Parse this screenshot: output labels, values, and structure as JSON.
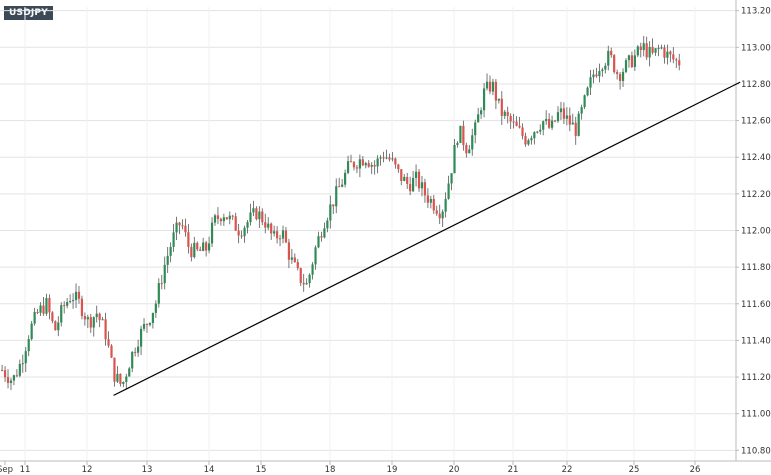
{
  "symbol": "USDJPY",
  "colors": {
    "up": "#2e8b57",
    "down": "#d9534f",
    "wick": "#555555",
    "grid": "#e3e3e3",
    "trendline": "#000000",
    "badge_bg": "#3c4a57",
    "axis": "#bbbbbb"
  },
  "chart_data": {
    "type": "candlestick",
    "title": "USDJPY",
    "y_ticks": [
      "113.200",
      "113.000",
      "112.800",
      "112.600",
      "112.400",
      "112.200",
      "112.000",
      "111.800",
      "111.600",
      "111.400",
      "111.200",
      "111.000",
      "110.800"
    ],
    "x_ticks": [
      "Sep",
      "11",
      "12",
      "13",
      "14",
      "15",
      "18",
      "19",
      "20",
      "21",
      "22",
      "25",
      "26"
    ],
    "ylim": [
      110.78,
      113.22
    ],
    "grid": true,
    "legend": "none",
    "trendline": {
      "start": [
        12.7,
        111.1
      ],
      "end": [
        27.6,
        112.81
      ]
    },
    "close_path": [
      [
        10.0,
        111.25
      ],
      [
        10.3,
        111.18
      ],
      [
        10.5,
        111.28
      ],
      [
        10.7,
        111.45
      ],
      [
        10.9,
        111.55
      ],
      [
        11.1,
        111.6
      ],
      [
        11.3,
        111.45
      ],
      [
        11.5,
        111.58
      ],
      [
        11.7,
        111.65
      ],
      [
        11.9,
        111.6
      ],
      [
        12.1,
        111.5
      ],
      [
        12.3,
        111.55
      ],
      [
        12.5,
        111.45
      ],
      [
        12.7,
        111.22
      ],
      [
        12.9,
        111.15
      ],
      [
        13.1,
        111.3
      ],
      [
        13.3,
        111.42
      ],
      [
        13.5,
        111.5
      ],
      [
        13.7,
        111.6
      ],
      [
        13.9,
        111.8
      ],
      [
        14.1,
        111.95
      ],
      [
        14.3,
        112.05
      ],
      [
        14.5,
        111.9
      ],
      [
        14.7,
        111.88
      ],
      [
        14.9,
        111.9
      ],
      [
        15.1,
        112.05
      ],
      [
        15.3,
        112.1
      ],
      [
        15.5,
        112.05
      ],
      [
        15.7,
        112.0
      ],
      [
        15.9,
        112.05
      ],
      [
        16.1,
        112.1
      ],
      [
        16.3,
        112.05
      ],
      [
        16.5,
        111.95
      ],
      [
        16.7,
        112.0
      ],
      [
        16.9,
        111.85
      ],
      [
        17.1,
        111.75
      ],
      [
        17.3,
        111.7
      ],
      [
        17.5,
        111.9
      ],
      [
        17.7,
        112.05
      ],
      [
        17.9,
        112.15
      ],
      [
        18.1,
        112.25
      ],
      [
        18.3,
        112.35
      ],
      [
        18.5,
        112.38
      ],
      [
        18.7,
        112.4
      ],
      [
        18.9,
        112.35
      ],
      [
        19.1,
        112.42
      ],
      [
        19.3,
        112.38
      ],
      [
        19.5,
        112.3
      ],
      [
        19.7,
        112.25
      ],
      [
        19.9,
        112.28
      ],
      [
        20.1,
        112.2
      ],
      [
        20.3,
        112.15
      ],
      [
        20.5,
        112.1
      ],
      [
        20.7,
        112.3
      ],
      [
        20.9,
        112.55
      ],
      [
        21.1,
        112.45
      ],
      [
        21.3,
        112.55
      ],
      [
        21.5,
        112.75
      ],
      [
        21.7,
        112.8
      ],
      [
        21.9,
        112.65
      ],
      [
        22.1,
        112.6
      ],
      [
        22.3,
        112.55
      ],
      [
        22.5,
        112.5
      ],
      [
        22.7,
        112.55
      ],
      [
        22.9,
        112.6
      ],
      [
        23.1,
        112.55
      ],
      [
        23.3,
        112.65
      ],
      [
        23.5,
        112.6
      ],
      [
        23.7,
        112.55
      ],
      [
        23.9,
        112.7
      ],
      [
        24.1,
        112.85
      ],
      [
        24.3,
        112.92
      ],
      [
        24.5,
        112.95
      ],
      [
        24.7,
        112.85
      ],
      [
        24.9,
        112.9
      ],
      [
        25.1,
        112.95
      ],
      [
        25.3,
        113.0
      ],
      [
        25.5,
        112.95
      ],
      [
        25.7,
        113.0
      ],
      [
        25.9,
        112.95
      ],
      [
        26.1,
        112.92
      ]
    ]
  }
}
